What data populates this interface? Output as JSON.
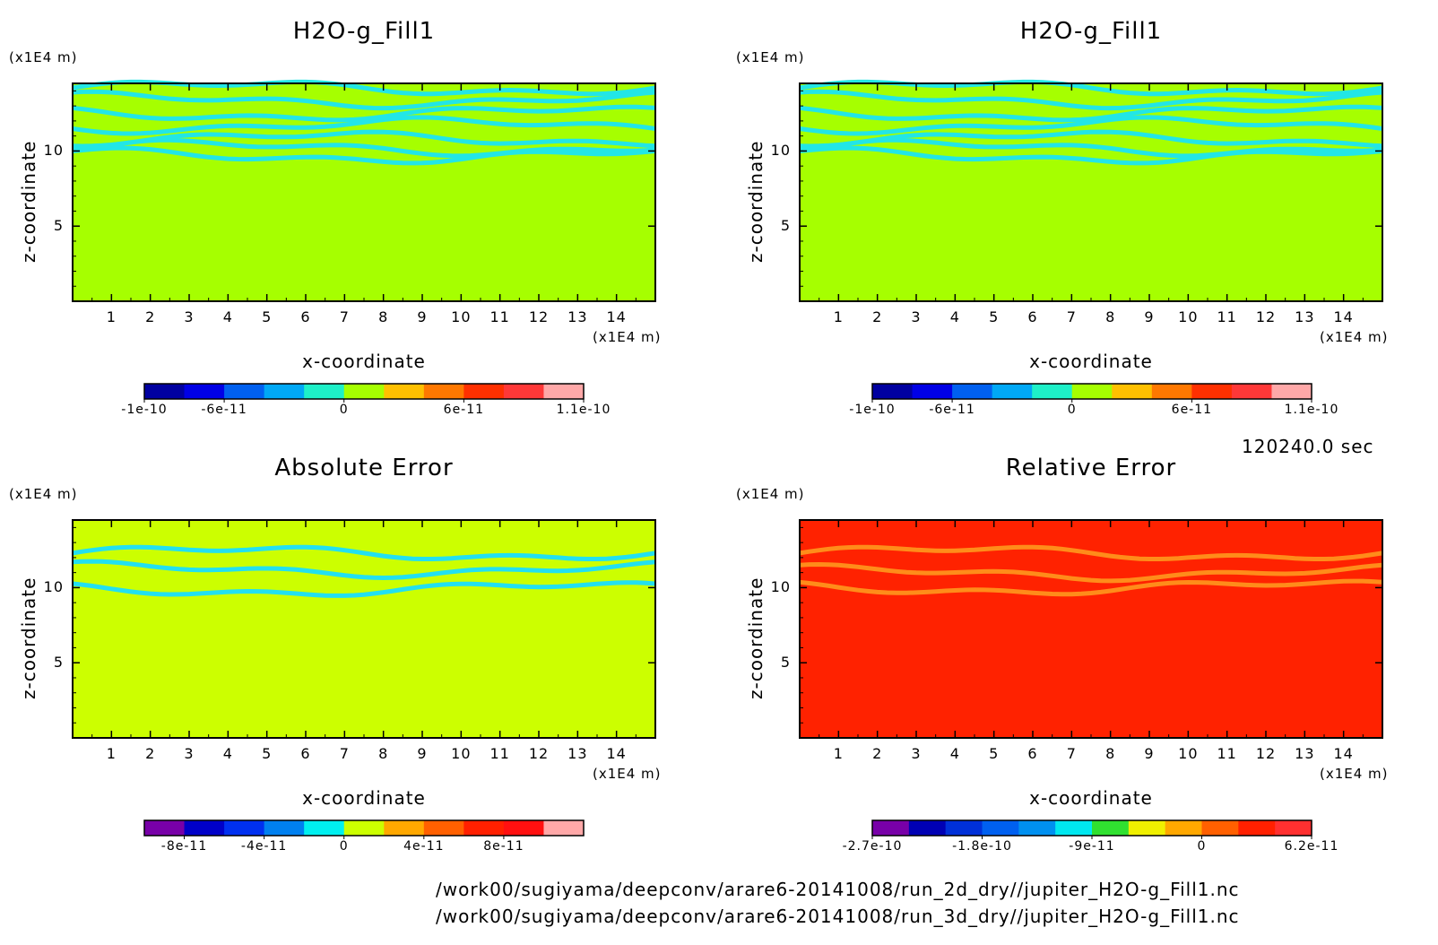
{
  "time_label": "120240.0 sec",
  "file_paths": [
    "/work00/sugiyama/deepconv/arare6-20141008/run_2d_dry//jupiter_H2O-g_Fill1.nc",
    "/work00/sugiyama/deepconv/arare6-20141008/run_3d_dry//jupiter_H2O-g_Fill1.nc"
  ],
  "chart_data": [
    {
      "type": "heatmap",
      "title": "H2O-g_Fill1",
      "xlabel": "x-coordinate",
      "ylabel": "z-coordinate",
      "x_unit": "(x1E4 m)",
      "z_unit": "(x1E4 m)",
      "xlim": [
        0,
        15
      ],
      "zlim": [
        0,
        14.5
      ],
      "x_ticks": [
        "1",
        "2",
        "3",
        "4",
        "5",
        "6",
        "7",
        "8",
        "9",
        "10",
        "11",
        "12",
        "13",
        "14"
      ],
      "z_ticks": [
        "5",
        "10"
      ],
      "background_color": "#a6ff00",
      "band_color": "#22e6e6",
      "bands_z": [
        14.2,
        13.4,
        12.5,
        11.7,
        10.8,
        10.2,
        9.7
      ],
      "colorbar": {
        "colors": [
          "#0000a0",
          "#0000e6",
          "#0060f0",
          "#00a8f5",
          "#1ef0c8",
          "#a6ff00",
          "#ffc000",
          "#ff7800",
          "#ff3000",
          "#ff3838",
          "#ffa8a8"
        ],
        "labels": [
          "-1e-10",
          "-6e-11",
          "0",
          "6e-11",
          "1.1e-10"
        ],
        "label_bins": [
          0,
          2,
          5,
          8,
          11
        ]
      }
    },
    {
      "type": "heatmap",
      "title": "H2O-g_Fill1",
      "xlabel": "x-coordinate",
      "ylabel": "z-coordinate",
      "x_unit": "(x1E4 m)",
      "z_unit": "(x1E4 m)",
      "xlim": [
        0,
        15
      ],
      "zlim": [
        0,
        14.5
      ],
      "x_ticks": [
        "1",
        "2",
        "3",
        "4",
        "5",
        "6",
        "7",
        "8",
        "9",
        "10",
        "11",
        "12",
        "13",
        "14"
      ],
      "z_ticks": [
        "5",
        "10"
      ],
      "background_color": "#a6ff00",
      "band_color": "#22e6e6",
      "bands_z": [
        14.2,
        13.4,
        12.5,
        11.7,
        10.8,
        10.2,
        9.7
      ],
      "colorbar": {
        "colors": [
          "#0000a0",
          "#0000e6",
          "#0060f0",
          "#00a8f5",
          "#1ef0c8",
          "#a6ff00",
          "#ffc000",
          "#ff7800",
          "#ff3000",
          "#ff3838",
          "#ffa8a8"
        ],
        "labels": [
          "-1e-10",
          "-6e-11",
          "0",
          "6e-11",
          "1.1e-10"
        ],
        "label_bins": [
          0,
          2,
          5,
          8,
          11
        ]
      }
    },
    {
      "type": "heatmap",
      "title": "Absolute Error",
      "xlabel": "x-coordinate",
      "ylabel": "z-coordinate",
      "x_unit": "(x1E4 m)",
      "z_unit": "(x1E4 m)",
      "xlim": [
        0,
        15
      ],
      "zlim": [
        0,
        14.5
      ],
      "x_ticks": [
        "1",
        "2",
        "3",
        "4",
        "5",
        "6",
        "7",
        "8",
        "9",
        "10",
        "11",
        "12",
        "13",
        "14"
      ],
      "z_ticks": [
        "5",
        "10"
      ],
      "background_color": "#ccff00",
      "band_color": "#22e0f0",
      "bands_z": [
        12.3,
        11.2,
        9.9
      ],
      "colorbar": {
        "colors": [
          "#7800a8",
          "#0000c8",
          "#0030f0",
          "#0080f0",
          "#00f0f0",
          "#ccff00",
          "#ffa800",
          "#ff6000",
          "#ff2000",
          "#ff1010",
          "#ffa8a8"
        ],
        "labels": [
          "-8e-11",
          "-4e-11",
          "0",
          "4e-11",
          "8e-11"
        ],
        "label_bins": [
          1,
          3,
          5,
          7,
          9
        ]
      }
    },
    {
      "type": "heatmap",
      "title": "Relative Error",
      "xlabel": "x-coordinate",
      "ylabel": "z-coordinate",
      "x_unit": "(x1E4 m)",
      "z_unit": "(x1E4 m)",
      "xlim": [
        0,
        15
      ],
      "zlim": [
        0,
        14.5
      ],
      "x_ticks": [
        "1",
        "2",
        "3",
        "4",
        "5",
        "6",
        "7",
        "8",
        "9",
        "10",
        "11",
        "12",
        "13",
        "14"
      ],
      "z_ticks": [
        "5",
        "10"
      ],
      "background_color": "#ff2200",
      "band_color": "#ff8c1a",
      "bands_z": [
        12.3,
        11.0,
        10.0
      ],
      "colorbar": {
        "colors": [
          "#7800a8",
          "#0000b4",
          "#0030d8",
          "#0060f0",
          "#0090f0",
          "#00e8f0",
          "#30e030",
          "#f0f000",
          "#ffa800",
          "#ff6000",
          "#ff2000",
          "#ff3030"
        ],
        "labels": [
          "-2.7e-10",
          "-1.8e-10",
          "-9e-11",
          "0",
          "6.2e-11"
        ],
        "label_bins": [
          0,
          3,
          6,
          9,
          12
        ]
      }
    }
  ]
}
